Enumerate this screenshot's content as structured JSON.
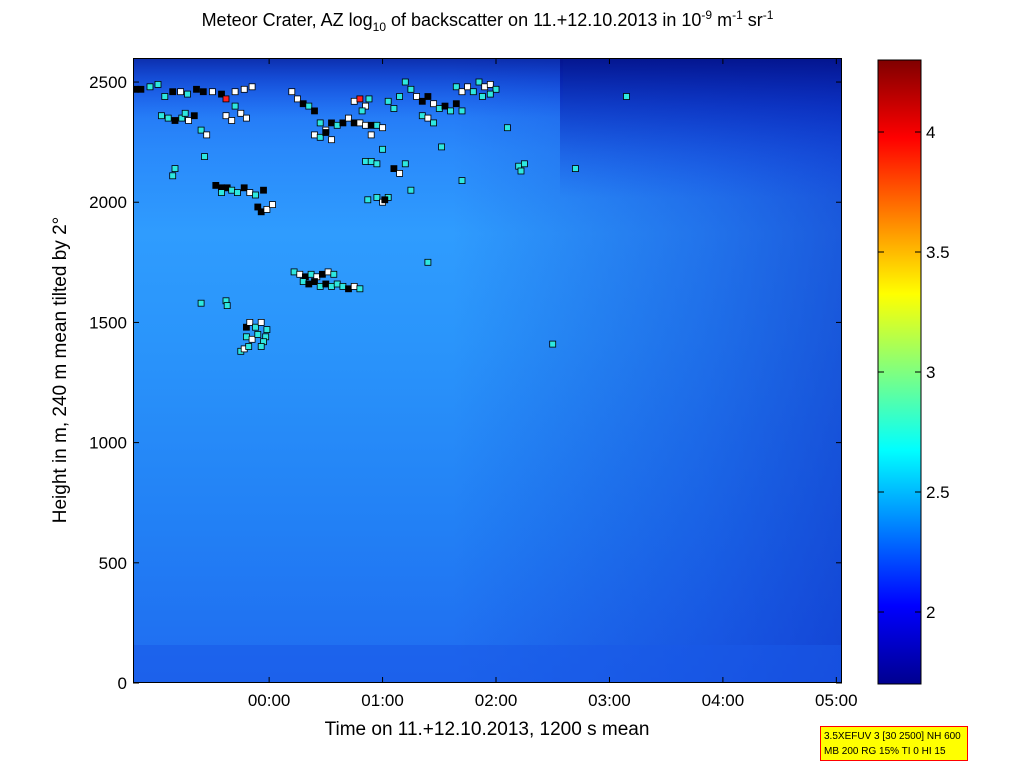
{
  "chart_data": {
    "type": "heatmap",
    "title": {
      "prefix": "Meteor Crater, AZ log",
      "sub": "10",
      "middle": " of backscatter on 11.+12.10.2013 in 10",
      "sup1": "-9",
      "m_unit": " m",
      "sup2": "-1",
      "sr_unit": " sr",
      "sup3": "-1"
    },
    "xlabel": "Time on 11.+12.10.2013, 1200 s mean",
    "ylabel": "Height in m, 240 m mean tilted by 2°",
    "x_ticks": [
      "00:00",
      "01:00",
      "02:00",
      "03:00",
      "04:00",
      "05:00"
    ],
    "x_range_hours": [
      -1.2,
      5.05
    ],
    "y_ticks": [
      0,
      500,
      1000,
      1500,
      2000,
      2500
    ],
    "y_range": [
      0,
      2600
    ],
    "colorbar": {
      "range": [
        1.7,
        4.3
      ],
      "ticks": [
        2,
        2.5,
        3,
        3.5,
        4
      ],
      "tick_labels": [
        "2",
        "2.5",
        "3",
        "3.5",
        "4"
      ]
    },
    "markers": [
      {
        "t": -1.18,
        "h": 2470,
        "c": "black"
      },
      {
        "t": -1.13,
        "h": 2470,
        "c": "black"
      },
      {
        "t": -1.05,
        "h": 2480,
        "c": "cyan"
      },
      {
        "t": -0.98,
        "h": 2490,
        "c": "cyan"
      },
      {
        "t": -0.92,
        "h": 2440,
        "c": "cyan"
      },
      {
        "t": -0.85,
        "h": 2460,
        "c": "black"
      },
      {
        "t": -0.78,
        "h": 2460,
        "c": "white"
      },
      {
        "t": -0.72,
        "h": 2450,
        "c": "cyan"
      },
      {
        "t": -0.64,
        "h": 2470,
        "c": "black"
      },
      {
        "t": -0.58,
        "h": 2460,
        "c": "black"
      },
      {
        "t": -0.5,
        "h": 2460,
        "c": "white"
      },
      {
        "t": -0.42,
        "h": 2450,
        "c": "black"
      },
      {
        "t": -0.38,
        "h": 2430,
        "c": "red"
      },
      {
        "t": -0.3,
        "h": 2460,
        "c": "white"
      },
      {
        "t": -0.22,
        "h": 2470,
        "c": "white"
      },
      {
        "t": -0.15,
        "h": 2480,
        "c": "white"
      },
      {
        "t": -0.3,
        "h": 2400,
        "c": "cyan"
      },
      {
        "t": -0.25,
        "h": 2370,
        "c": "white"
      },
      {
        "t": -0.38,
        "h": 2360,
        "c": "white"
      },
      {
        "t": -0.33,
        "h": 2340,
        "c": "white"
      },
      {
        "t": -0.2,
        "h": 2350,
        "c": "white"
      },
      {
        "t": -0.95,
        "h": 2360,
        "c": "cyan"
      },
      {
        "t": -0.89,
        "h": 2350,
        "c": "cyan"
      },
      {
        "t": -0.83,
        "h": 2340,
        "c": "black"
      },
      {
        "t": -0.77,
        "h": 2350,
        "c": "cyan"
      },
      {
        "t": -0.71,
        "h": 2340,
        "c": "white"
      },
      {
        "t": -0.66,
        "h": 2360,
        "c": "black"
      },
      {
        "t": -0.6,
        "h": 2300,
        "c": "cyan"
      },
      {
        "t": -0.55,
        "h": 2280,
        "c": "white"
      },
      {
        "t": -0.74,
        "h": 2370,
        "c": "cyan"
      },
      {
        "t": -0.57,
        "h": 2190,
        "c": "cyan"
      },
      {
        "t": -0.83,
        "h": 2140,
        "c": "cyan"
      },
      {
        "t": -0.85,
        "h": 2110,
        "c": "cyan"
      },
      {
        "t": -0.47,
        "h": 2070,
        "c": "black"
      },
      {
        "t": -0.42,
        "h": 2060,
        "c": "black"
      },
      {
        "t": -0.37,
        "h": 2060,
        "c": "black"
      },
      {
        "t": -0.33,
        "h": 2050,
        "c": "cyan"
      },
      {
        "t": -0.28,
        "h": 2040,
        "c": "cyan"
      },
      {
        "t": -0.22,
        "h": 2060,
        "c": "black"
      },
      {
        "t": -0.17,
        "h": 2040,
        "c": "white"
      },
      {
        "t": -0.12,
        "h": 2030,
        "c": "cyan"
      },
      {
        "t": -0.42,
        "h": 2040,
        "c": "cyan"
      },
      {
        "t": -0.05,
        "h": 2050,
        "c": "black"
      },
      {
        "t": -0.1,
        "h": 1980,
        "c": "black"
      },
      {
        "t": -0.07,
        "h": 1960,
        "c": "black"
      },
      {
        "t": -0.02,
        "h": 1970,
        "c": "white"
      },
      {
        "t": 0.03,
        "h": 1990,
        "c": "white"
      },
      {
        "t": 0.25,
        "h": 2430,
        "c": "white"
      },
      {
        "t": 0.2,
        "h": 2460,
        "c": "white"
      },
      {
        "t": 0.3,
        "h": 2410,
        "c": "black"
      },
      {
        "t": 0.35,
        "h": 2400,
        "c": "cyan"
      },
      {
        "t": 0.4,
        "h": 2380,
        "c": "black"
      },
      {
        "t": 0.45,
        "h": 2330,
        "c": "cyan"
      },
      {
        "t": 0.5,
        "h": 2300,
        "c": "white"
      },
      {
        "t": 0.55,
        "h": 2330,
        "c": "black"
      },
      {
        "t": 0.6,
        "h": 2320,
        "c": "cyan"
      },
      {
        "t": 0.65,
        "h": 2330,
        "c": "black"
      },
      {
        "t": 0.7,
        "h": 2350,
        "c": "white"
      },
      {
        "t": 0.75,
        "h": 2330,
        "c": "black"
      },
      {
        "t": 0.8,
        "h": 2330,
        "c": "white"
      },
      {
        "t": 0.85,
        "h": 2320,
        "c": "white"
      },
      {
        "t": 0.4,
        "h": 2280,
        "c": "white"
      },
      {
        "t": 0.45,
        "h": 2270,
        "c": "cyan"
      },
      {
        "t": 0.5,
        "h": 2290,
        "c": "black"
      },
      {
        "t": 0.55,
        "h": 2260,
        "c": "white"
      },
      {
        "t": 0.75,
        "h": 2420,
        "c": "white"
      },
      {
        "t": 0.8,
        "h": 2430,
        "c": "red"
      },
      {
        "t": 0.88,
        "h": 2430,
        "c": "cyan"
      },
      {
        "t": 0.85,
        "h": 2400,
        "c": "white"
      },
      {
        "t": 0.82,
        "h": 2380,
        "c": "cyan"
      },
      {
        "t": 0.9,
        "h": 2320,
        "c": "black"
      },
      {
        "t": 0.95,
        "h": 2320,
        "c": "cyan"
      },
      {
        "t": 1.0,
        "h": 2310,
        "c": "white"
      },
      {
        "t": 0.9,
        "h": 2280,
        "c": "white"
      },
      {
        "t": 1.05,
        "h": 2420,
        "c": "cyan"
      },
      {
        "t": 1.1,
        "h": 2390,
        "c": "cyan"
      },
      {
        "t": 1.15,
        "h": 2440,
        "c": "cyan"
      },
      {
        "t": 1.2,
        "h": 2500,
        "c": "cyan"
      },
      {
        "t": 1.25,
        "h": 2470,
        "c": "cyan"
      },
      {
        "t": 1.3,
        "h": 2440,
        "c": "white"
      },
      {
        "t": 1.35,
        "h": 2420,
        "c": "black"
      },
      {
        "t": 1.4,
        "h": 2440,
        "c": "black"
      },
      {
        "t": 1.45,
        "h": 2410,
        "c": "white"
      },
      {
        "t": 1.5,
        "h": 2390,
        "c": "cyan"
      },
      {
        "t": 1.55,
        "h": 2400,
        "c": "black"
      },
      {
        "t": 1.6,
        "h": 2380,
        "c": "cyan"
      },
      {
        "t": 1.65,
        "h": 2410,
        "c": "black"
      },
      {
        "t": 1.7,
        "h": 2380,
        "c": "cyan"
      },
      {
        "t": 1.35,
        "h": 2360,
        "c": "cyan"
      },
      {
        "t": 1.4,
        "h": 2350,
        "c": "white"
      },
      {
        "t": 1.45,
        "h": 2330,
        "c": "cyan"
      },
      {
        "t": 1.65,
        "h": 2480,
        "c": "cyan"
      },
      {
        "t": 1.7,
        "h": 2460,
        "c": "white"
      },
      {
        "t": 1.75,
        "h": 2480,
        "c": "white"
      },
      {
        "t": 1.8,
        "h": 2460,
        "c": "cyan"
      },
      {
        "t": 1.85,
        "h": 2500,
        "c": "cyan"
      },
      {
        "t": 1.9,
        "h": 2480,
        "c": "white"
      },
      {
        "t": 1.95,
        "h": 2490,
        "c": "white"
      },
      {
        "t": 2.0,
        "h": 2470,
        "c": "cyan"
      },
      {
        "t": 1.88,
        "h": 2440,
        "c": "cyan"
      },
      {
        "t": 1.95,
        "h": 2450,
        "c": "cyan"
      },
      {
        "t": 2.1,
        "h": 2310,
        "c": "cyan"
      },
      {
        "t": 2.2,
        "h": 2150,
        "c": "cyan"
      },
      {
        "t": 2.22,
        "h": 2130,
        "c": "cyan"
      },
      {
        "t": 2.25,
        "h": 2160,
        "c": "cyan"
      },
      {
        "t": 1.52,
        "h": 2230,
        "c": "cyan"
      },
      {
        "t": 1.7,
        "h": 2090,
        "c": "cyan"
      },
      {
        "t": 2.7,
        "h": 2140,
        "c": "cyan"
      },
      {
        "t": 3.15,
        "h": 2440,
        "c": "cyan"
      },
      {
        "t": 0.85,
        "h": 2170,
        "c": "cyan"
      },
      {
        "t": 0.9,
        "h": 2170,
        "c": "cyan"
      },
      {
        "t": 0.95,
        "h": 2160,
        "c": "cyan"
      },
      {
        "t": 1.0,
        "h": 2220,
        "c": "cyan"
      },
      {
        "t": 1.1,
        "h": 2140,
        "c": "black"
      },
      {
        "t": 1.15,
        "h": 2120,
        "c": "white"
      },
      {
        "t": 1.2,
        "h": 2160,
        "c": "cyan"
      },
      {
        "t": 1.25,
        "h": 2050,
        "c": "cyan"
      },
      {
        "t": 0.95,
        "h": 2020,
        "c": "cyan"
      },
      {
        "t": 1.0,
        "h": 2000,
        "c": "white"
      },
      {
        "t": 1.05,
        "h": 2020,
        "c": "cyan"
      },
      {
        "t": 1.02,
        "h": 2010,
        "c": "black"
      },
      {
        "t": 0.87,
        "h": 2010,
        "c": "cyan"
      },
      {
        "t": 0.22,
        "h": 1710,
        "c": "cyan"
      },
      {
        "t": 0.27,
        "h": 1700,
        "c": "white"
      },
      {
        "t": 0.32,
        "h": 1690,
        "c": "black"
      },
      {
        "t": 0.37,
        "h": 1700,
        "c": "cyan"
      },
      {
        "t": 0.42,
        "h": 1690,
        "c": "white"
      },
      {
        "t": 0.47,
        "h": 1700,
        "c": "black"
      },
      {
        "t": 0.52,
        "h": 1710,
        "c": "white"
      },
      {
        "t": 0.57,
        "h": 1700,
        "c": "cyan"
      },
      {
        "t": 0.3,
        "h": 1670,
        "c": "cyan"
      },
      {
        "t": 0.35,
        "h": 1660,
        "c": "black"
      },
      {
        "t": 0.4,
        "h": 1670,
        "c": "black"
      },
      {
        "t": 0.45,
        "h": 1650,
        "c": "cyan"
      },
      {
        "t": 0.5,
        "h": 1660,
        "c": "black"
      },
      {
        "t": 0.55,
        "h": 1650,
        "c": "cyan"
      },
      {
        "t": 0.6,
        "h": 1660,
        "c": "cyan"
      },
      {
        "t": 0.65,
        "h": 1650,
        "c": "cyan"
      },
      {
        "t": 0.7,
        "h": 1640,
        "c": "black"
      },
      {
        "t": 0.75,
        "h": 1650,
        "c": "white"
      },
      {
        "t": 0.8,
        "h": 1640,
        "c": "cyan"
      },
      {
        "t": 1.4,
        "h": 1750,
        "c": "cyan"
      },
      {
        "t": -0.6,
        "h": 1580,
        "c": "cyan"
      },
      {
        "t": -0.38,
        "h": 1590,
        "c": "cyan"
      },
      {
        "t": -0.37,
        "h": 1570,
        "c": "cyan"
      },
      {
        "t": -0.2,
        "h": 1480,
        "c": "black"
      },
      {
        "t": -0.17,
        "h": 1500,
        "c": "white"
      },
      {
        "t": -0.12,
        "h": 1480,
        "c": "cyan"
      },
      {
        "t": -0.07,
        "h": 1500,
        "c": "white"
      },
      {
        "t": -0.02,
        "h": 1470,
        "c": "cyan"
      },
      {
        "t": -0.03,
        "h": 1440,
        "c": "cyan"
      },
      {
        "t": -0.2,
        "h": 1440,
        "c": "cyan"
      },
      {
        "t": -0.15,
        "h": 1430,
        "c": "white"
      },
      {
        "t": -0.1,
        "h": 1450,
        "c": "cyan"
      },
      {
        "t": -0.05,
        "h": 1420,
        "c": "cyan"
      },
      {
        "t": -0.25,
        "h": 1380,
        "c": "cyan"
      },
      {
        "t": -0.22,
        "h": 1390,
        "c": "white"
      },
      {
        "t": -0.18,
        "h": 1400,
        "c": "cyan"
      },
      {
        "t": -0.07,
        "h": 1400,
        "c": "cyan"
      },
      {
        "t": 2.5,
        "h": 1410,
        "c": "cyan"
      }
    ]
  },
  "info_box": {
    "line1": "3.5XEFUV 3 [30 2500] NH 600",
    "line2": "MB 200 RG 15% TI 0 HI 15"
  }
}
